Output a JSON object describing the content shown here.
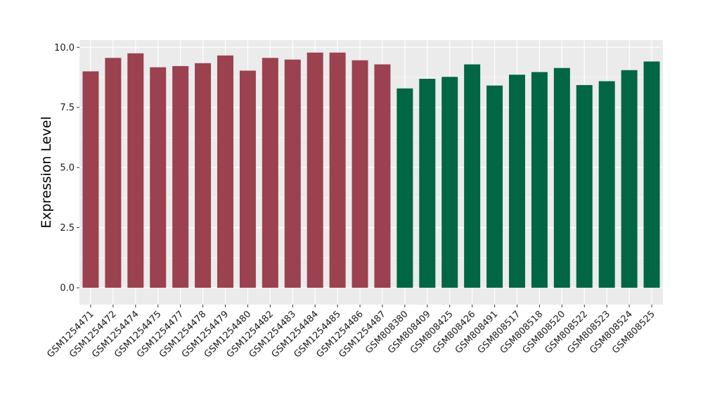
{
  "chart_data": {
    "type": "bar",
    "title": "",
    "xlabel": "",
    "ylabel": "Expression Level",
    "ylim": [
      -0.7,
      10.3
    ],
    "yticks": [
      0,
      2.5,
      5,
      7.5,
      10
    ],
    "ytick_labels": [
      "0.0",
      "2.5",
      "5.0",
      "7.5",
      "10.0"
    ],
    "grid": true,
    "legend": "none",
    "categories": [
      "GSM1254471",
      "GSM1254472",
      "GSM1254474",
      "GSM1254475",
      "GSM1254477",
      "GSM1254478",
      "GSM1254479",
      "GSM1254480",
      "GSM1254482",
      "GSM1254483",
      "GSM1254484",
      "GSM1254485",
      "GSM1254486",
      "GSM1254487",
      "GSM808380",
      "GSM808409",
      "GSM808425",
      "GSM808426",
      "GSM808491",
      "GSM808517",
      "GSM808518",
      "GSM808520",
      "GSM808522",
      "GSM808523",
      "GSM808524",
      "GSM808525"
    ],
    "values": [
      9.0,
      9.56,
      9.75,
      9.17,
      9.22,
      9.34,
      9.66,
      9.03,
      9.56,
      9.49,
      9.78,
      9.78,
      9.46,
      9.29,
      8.29,
      8.69,
      8.77,
      9.29,
      8.41,
      8.86,
      8.97,
      9.14,
      8.43,
      8.59,
      9.05,
      9.41
    ],
    "groups": [
      0,
      0,
      0,
      0,
      0,
      0,
      0,
      0,
      0,
      0,
      0,
      0,
      0,
      0,
      1,
      1,
      1,
      1,
      1,
      1,
      1,
      1,
      1,
      1,
      1,
      1
    ],
    "colors": [
      "#9b4150",
      "#006644"
    ],
    "panel_background": "#ebebeb",
    "grid_color": "#ffffff"
  }
}
